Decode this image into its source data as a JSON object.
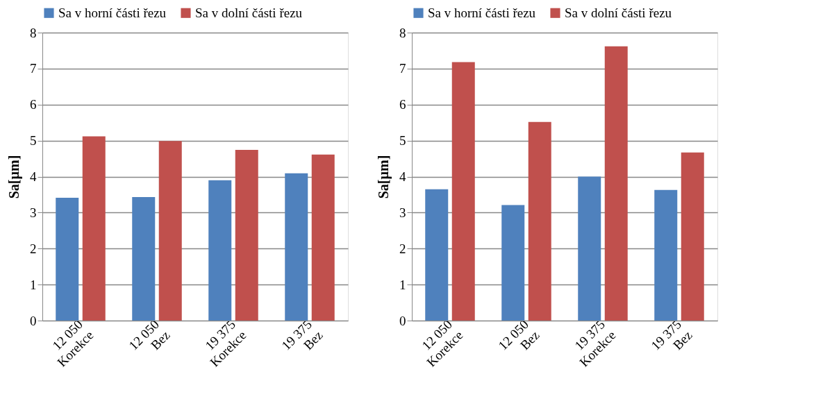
{
  "chart_data": [
    {
      "type": "bar",
      "ylabel": "Sa[µm]",
      "categories": [
        "12 050\nKorekce",
        "12 050\nBez",
        "19 375\nKorekce",
        "19 375\nBez"
      ],
      "series": [
        {
          "name": "Sa v horní části řezu",
          "color": "#4f81bd",
          "values": [
            3.41,
            3.43,
            3.9,
            4.09
          ]
        },
        {
          "name": "Sa v dolní části řezu",
          "color": "#c0504d",
          "values": [
            5.12,
            4.99,
            4.74,
            4.61
          ]
        }
      ],
      "ylim": [
        0,
        8
      ],
      "yticks": [
        0,
        1,
        2,
        3,
        4,
        5,
        6,
        7,
        8
      ],
      "grid": "y",
      "legend": "top"
    },
    {
      "type": "bar",
      "ylabel": "Sa[µm]",
      "categories": [
        "12 050\nKorekce",
        "12 050\nBez",
        "19 375\nKorekce",
        "19 375\nBez"
      ],
      "series": [
        {
          "name": "Sa v horní části řezu",
          "color": "#4f81bd",
          "values": [
            3.65,
            3.21,
            4.0,
            3.63
          ]
        },
        {
          "name": "Sa v dolní části řezu",
          "color": "#c0504d",
          "values": [
            7.18,
            5.52,
            7.62,
            4.67
          ]
        }
      ],
      "ylim": [
        0,
        8
      ],
      "yticks": [
        0,
        1,
        2,
        3,
        4,
        5,
        6,
        7,
        8
      ],
      "grid": "y",
      "legend": "top"
    }
  ]
}
